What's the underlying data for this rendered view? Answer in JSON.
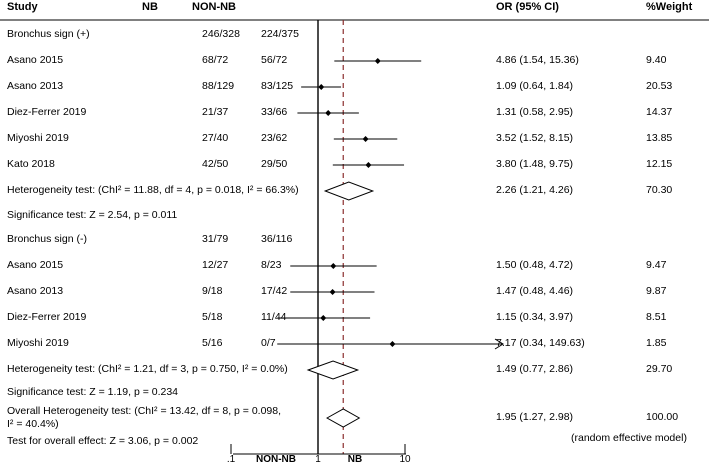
{
  "headers": {
    "study": "Study",
    "nb": "NB",
    "nonnb": "NON-NB",
    "or": "OR (95% CI)",
    "weight": "%Weight"
  },
  "rows": [
    {
      "type": "group",
      "label": "Bronchus sign (+)",
      "nb": "246/328",
      "nonnb": "224/375"
    },
    {
      "type": "study",
      "label": "Asano 2015",
      "nb": "68/72",
      "nonnb": "56/72",
      "or": "4.86 (1.54, 15.36)",
      "weight": "9.40"
    },
    {
      "type": "study",
      "label": "Asano 2013",
      "nb": "88/129",
      "nonnb": "83/125",
      "or": "1.09 (0.64, 1.84)",
      "weight": "20.53"
    },
    {
      "type": "study",
      "label": "Diez-Ferrer 2019",
      "nb": "21/37",
      "nonnb": "33/66",
      "or": "1.31 (0.58, 2.95)",
      "weight": "14.37"
    },
    {
      "type": "study",
      "label": "Miyoshi 2019",
      "nb": "27/40",
      "nonnb": "23/62",
      "or": "3.52 (1.52, 8.15)",
      "weight": "13.85"
    },
    {
      "type": "study",
      "label": "Kato 2018",
      "nb": "42/50",
      "nonnb": "29/50",
      "or": "3.80 (1.48, 9.75)",
      "weight": "12.15"
    },
    {
      "type": "pooled",
      "label": "Heterogeneity test: (ChI² = 11.88, df = 4, p = 0.018, I² = 66.3%)",
      "or": "2.26 (1.21, 4.26)",
      "weight": "70.30"
    },
    {
      "type": "note",
      "label": "Significance test: Z = 2.54, p = 0.011"
    },
    {
      "type": "group",
      "label": "Bronchus sign (-)",
      "nb": "31/79",
      "nonnb": "36/116"
    },
    {
      "type": "study",
      "label": "Asano 2015",
      "nb": "12/27",
      "nonnb": "8/23",
      "or": "1.50 (0.48, 4.72)",
      "weight": "9.47"
    },
    {
      "type": "study",
      "label": "Asano 2013",
      "nb": "9/18",
      "nonnb": "17/42",
      "or": "1.47 (0.48, 4.46)",
      "weight": "9.87"
    },
    {
      "type": "study",
      "label": "Diez-Ferrer 2019",
      "nb": "5/18",
      "nonnb": "11/44",
      "or": "1.15 (0.34, 3.97)",
      "weight": "8.51"
    },
    {
      "type": "study",
      "label": "Miyoshi 2019",
      "nb": "5/16",
      "nonnb": "0/7",
      "or": "7.17 (0.34, 149.63)",
      "weight": "1.85"
    },
    {
      "type": "pooled",
      "label": "Heterogeneity test: (ChI² = 1.21, df = 3, p = 0.750, I² = 0.0%)",
      "or": "1.49 (0.77, 2.86)",
      "weight": "29.70"
    },
    {
      "type": "note",
      "label": "Significance test: Z = 1.19, p = 0.234"
    },
    {
      "type": "overall",
      "label": "Overall Heterogeneity test: (ChI² = 13.42, df = 8, p = 0.098,",
      "label2": "I² = 40.4%)",
      "or": "1.95 (1.27, 2.98)",
      "weight": "100.00"
    },
    {
      "type": "note",
      "label": "Test for overall effect: Z = 3.06, p = 0.002"
    }
  ],
  "model_note": "(random effective model)",
  "chart_data": {
    "type": "forest",
    "x_scale": "log",
    "xlim": [
      0.1,
      30
    ],
    "x_ticks": [
      0.1,
      1,
      10
    ],
    "x_tick_labels": [
      ".1",
      "1",
      "10"
    ],
    "x_side_labels": {
      "left": "NON-NB",
      "right": "NB"
    },
    "null_line": 1,
    "overall_line": 1.95,
    "points": [
      {
        "est": 4.86,
        "lo": 1.54,
        "hi": 15.36
      },
      {
        "est": 1.09,
        "lo": 0.64,
        "hi": 1.84
      },
      {
        "est": 1.31,
        "lo": 0.58,
        "hi": 2.95
      },
      {
        "est": 3.52,
        "lo": 1.52,
        "hi": 8.15
      },
      {
        "est": 3.8,
        "lo": 1.48,
        "hi": 9.75
      },
      {
        "est": 2.26,
        "lo": 1.21,
        "hi": 4.26,
        "pooled": true
      },
      {
        "est": 1.5,
        "lo": 0.48,
        "hi": 4.72
      },
      {
        "est": 1.47,
        "lo": 0.48,
        "hi": 4.46
      },
      {
        "est": 1.15,
        "lo": 0.34,
        "hi": 3.97
      },
      {
        "est": 7.17,
        "lo": 0.34,
        "hi": 149.63,
        "arrow": true
      },
      {
        "est": 1.49,
        "lo": 0.77,
        "hi": 2.86,
        "pooled": true
      },
      {
        "est": 1.95,
        "lo": 1.27,
        "hi": 2.98,
        "pooled": true
      }
    ]
  }
}
